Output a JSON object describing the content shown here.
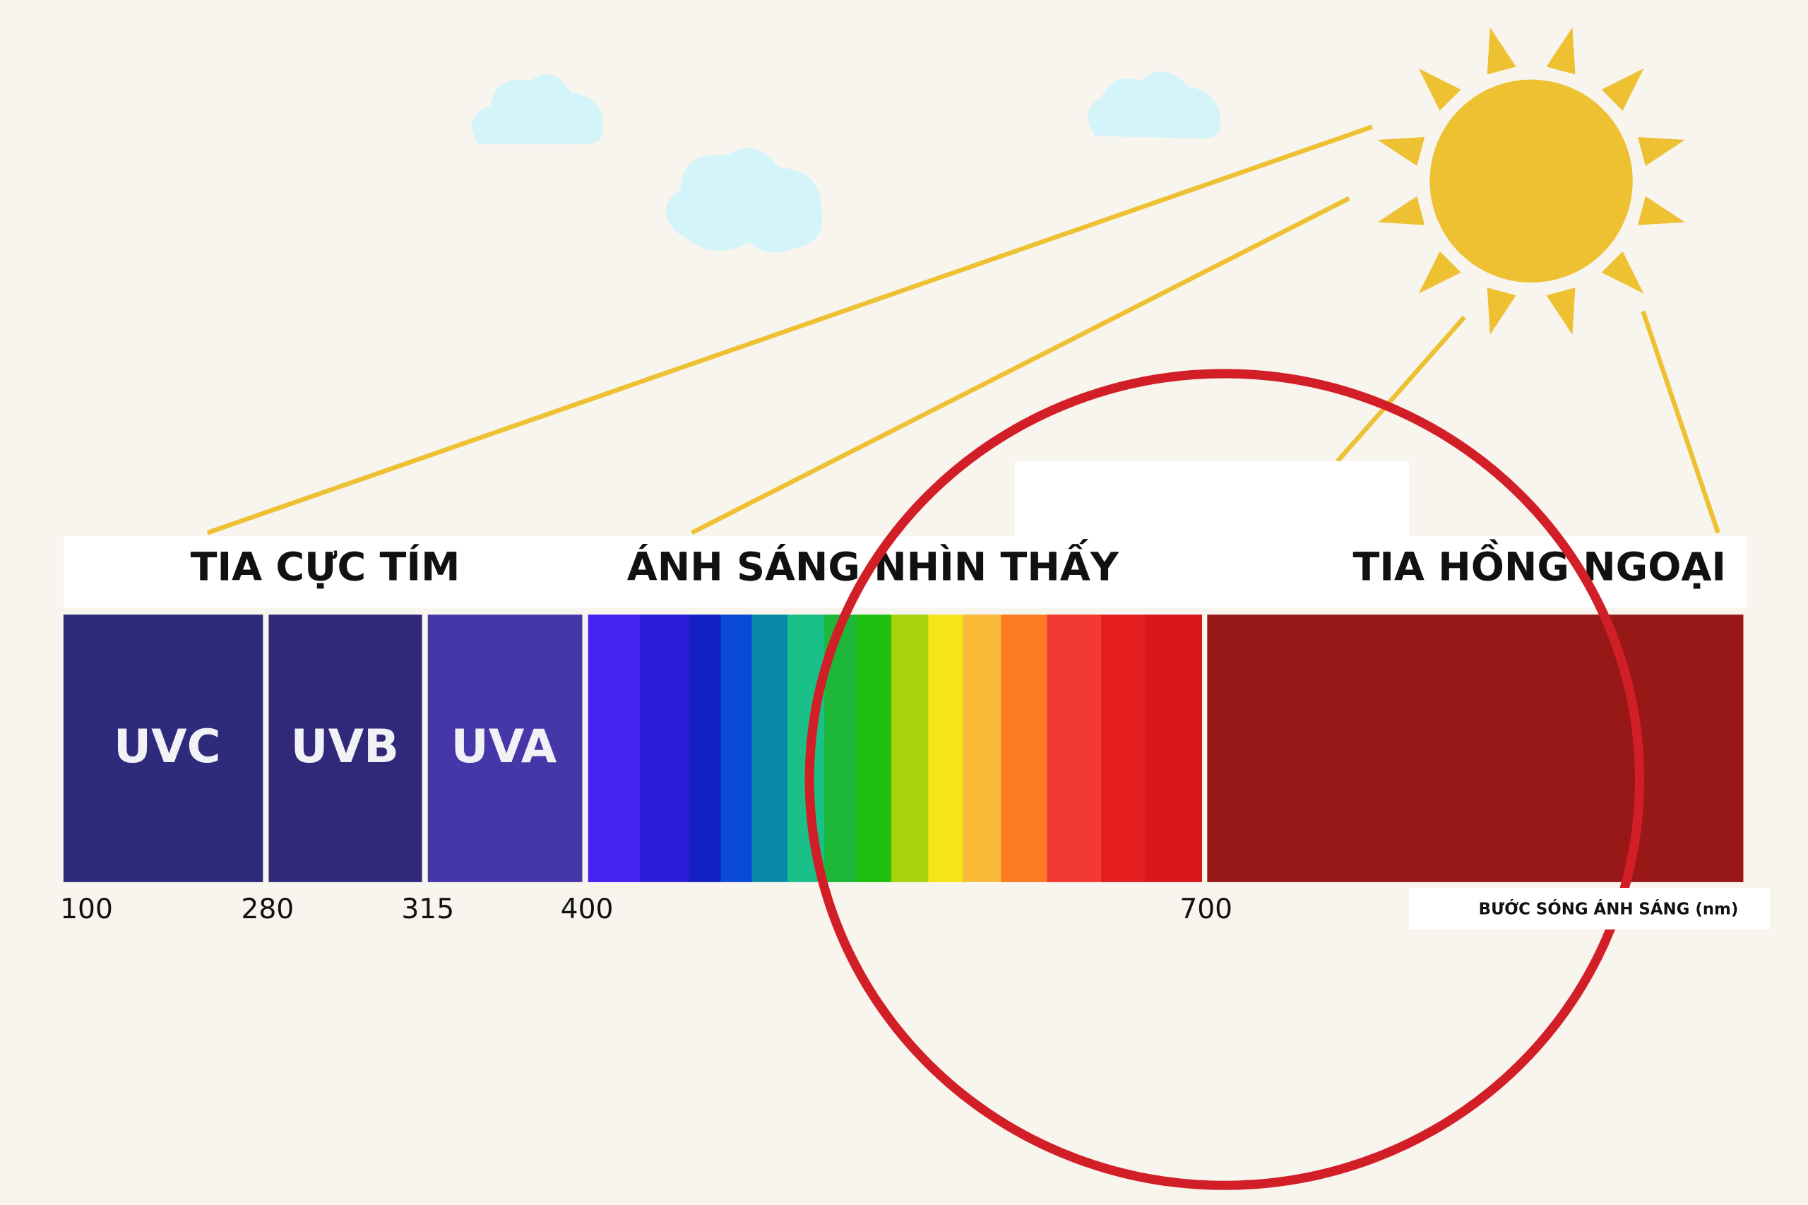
{
  "header": {
    "ultraviolet": "TIA CỰC TÍM",
    "visible": "ÁNH SÁNG NHÌN THẤY",
    "infrared": "TIA HỒNG NGOẠI"
  },
  "bands": [
    "UVC",
    "UVB",
    "UVA"
  ],
  "ticks": [
    "100",
    "280",
    "315",
    "400",
    "700"
  ],
  "axis_label": "BƯỚC SÓNG ÁNH SÁNG (nm)"
}
